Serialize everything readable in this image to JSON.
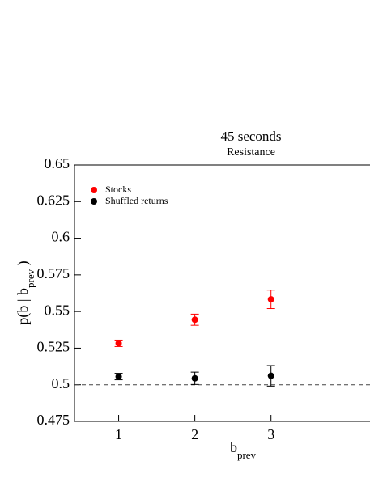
{
  "chart_data": {
    "type": "scatter",
    "title": "45 seconds",
    "subtitle": "Resistance",
    "xlabel": {
      "text": "b",
      "sub": "prev"
    },
    "ylabel": {
      "text": "p(b | b",
      "sub": "prev",
      "end": " )"
    },
    "x": [
      1,
      2,
      3
    ],
    "series": [
      {
        "name": "Stocks",
        "color": "#ff0000",
        "values": [
          0.5283,
          0.5444,
          0.5583
        ],
        "errors": [
          0.0022,
          0.0038,
          0.0063
        ]
      },
      {
        "name": "Shuffled returns",
        "color": "#000000",
        "values": [
          0.5056,
          0.5044,
          0.5061
        ],
        "errors": [
          0.0022,
          0.0042,
          0.007
        ]
      }
    ],
    "xlim": [
      0.42,
      4.3
    ],
    "xticks": [
      1,
      2,
      3
    ],
    "ylim": [
      0.475,
      0.65
    ],
    "yticks": [
      0.475,
      0.5,
      0.525,
      0.55,
      0.575,
      0.6,
      0.625,
      0.65
    ],
    "reference_line": 0.5,
    "legend": "upper left"
  }
}
